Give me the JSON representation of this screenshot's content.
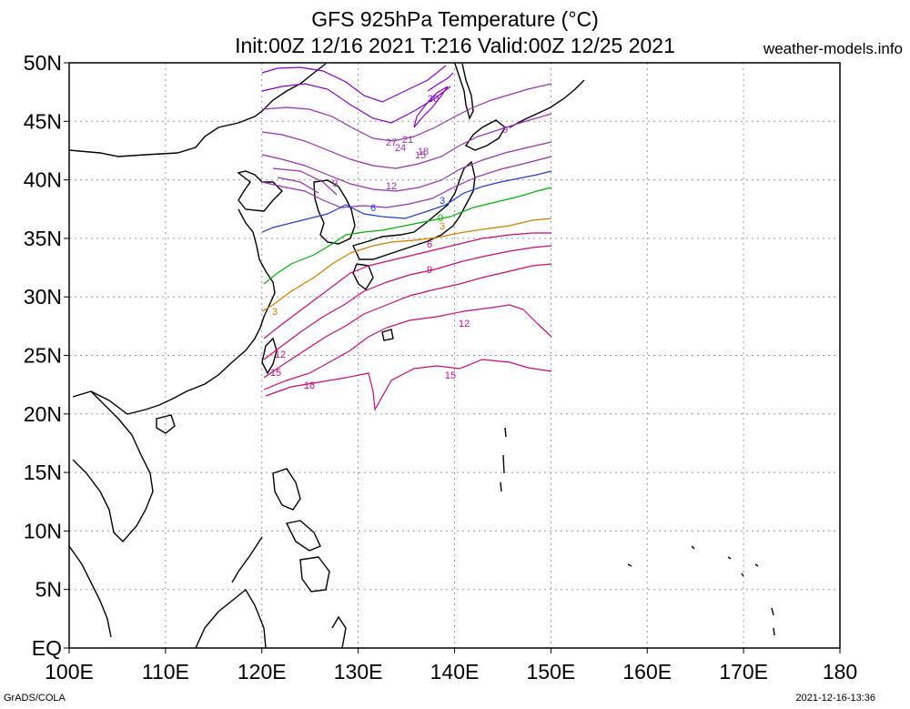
{
  "header": {
    "title_line1": "GFS 925hPa Temperature (°C)",
    "title_line2": "Init:00Z 12/16 2021 T:216 Valid:00Z 12/25 2021",
    "site": "weather-models.info"
  },
  "footer": {
    "left": "GrADS/COLA",
    "right": "2021-12-16-13:36"
  },
  "map": {
    "lon_range": [
      100,
      180
    ],
    "lat_range": [
      0,
      50
    ],
    "grid": "dotted",
    "data_region": {
      "lon": [
        120,
        150
      ],
      "lat": [
        22,
        50
      ]
    },
    "lat_labels": [
      "EQ",
      "5N",
      "10N",
      "15N",
      "20N",
      "25N",
      "30N",
      "35N",
      "40N",
      "45N",
      "50N"
    ],
    "lon_labels": [
      "100E",
      "110E",
      "120E",
      "130E",
      "140E",
      "150E",
      "160E",
      "170E",
      "180"
    ]
  },
  "contours": {
    "colors": {
      "cold_strong": "#8a00c8",
      "cold": "#9b2fb3",
      "minus3": "#1f3fcf",
      "zero": "#00b400",
      "plus3": "#d77a00",
      "warm": "#cc0a7a"
    },
    "labels": [
      "30",
      "27",
      "24",
      "21",
      "18",
      "15",
      "12",
      "9",
      "6",
      "3",
      "0",
      "3",
      "6",
      "9",
      "12",
      "15",
      "18"
    ]
  }
}
